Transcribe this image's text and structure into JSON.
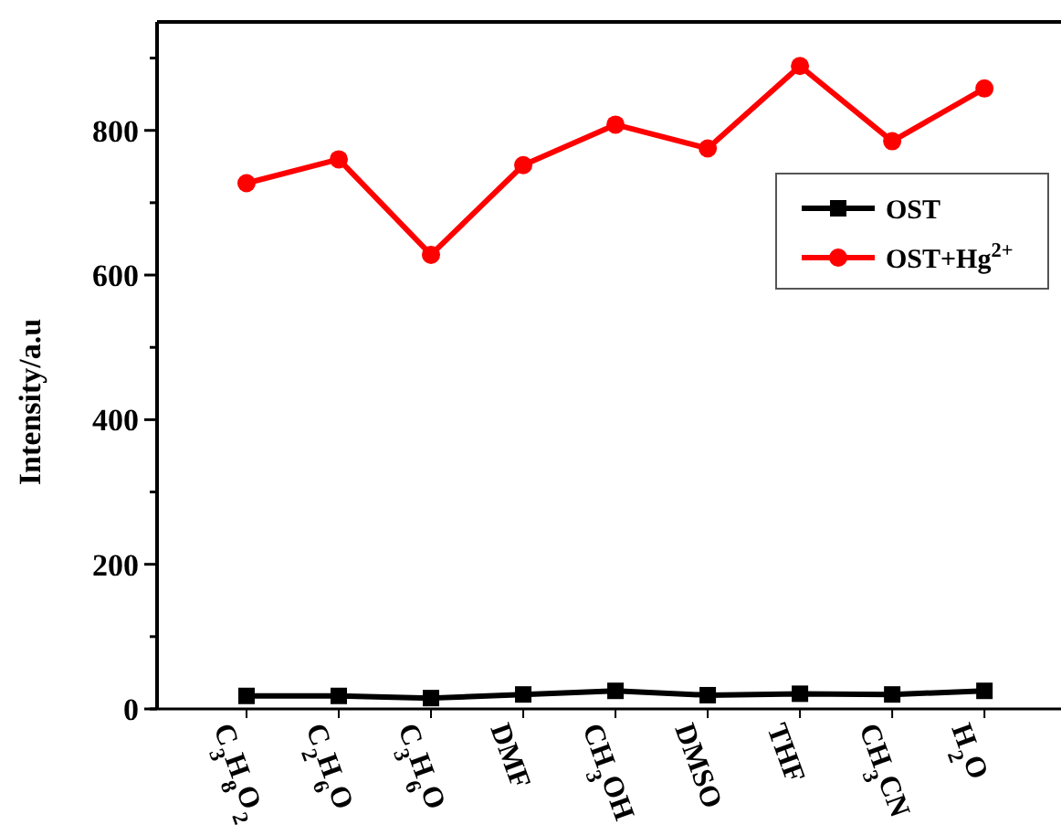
{
  "chart_data": {
    "type": "line",
    "ylabel": "Intensity/a.u",
    "categories": [
      "C$_{3}$H$_{8}$O$_{2}$",
      "C$_{2}$H$_{6}$O",
      "C$_{3}$H$_{6}$O",
      "DMF",
      "CH$_{3}$OH",
      "DMSO",
      "THF",
      "CH$_{3}$CN",
      "H$_{2}$O"
    ],
    "series": [
      {
        "name": "OST",
        "color": "#000000",
        "marker": "square",
        "values": [
          18,
          18,
          15,
          20,
          25,
          19,
          21,
          20,
          25
        ]
      },
      {
        "name": "OST+Hg$^{2+}$",
        "color": "#ff0000",
        "marker": "circle",
        "values": [
          727,
          760,
          628,
          752,
          808,
          775,
          889,
          785,
          858
        ]
      }
    ],
    "ylim": [
      0,
      950
    ],
    "yticks": [
      0,
      {
        "value": 100,
        "label": null
      },
      200,
      {
        "value": 300,
        "label": null
      },
      400,
      {
        "value": 500,
        "label": null
      },
      600,
      {
        "value": 700,
        "label": null
      },
      800,
      {
        "value": 900,
        "label": null
      }
    ],
    "grid": false,
    "legend": "top right",
    "line_style": "solid"
  }
}
